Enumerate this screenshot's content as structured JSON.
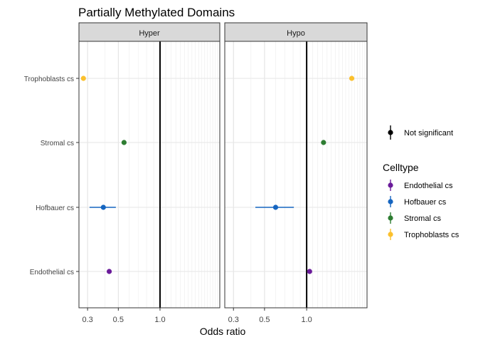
{
  "chart_data": {
    "type": "scatter",
    "title": "Partially Methylated Domains",
    "xlabel": "Odds ratio",
    "ylabel": "",
    "x_scale": "log10",
    "xlim": [
      0.26,
      2.7
    ],
    "x_ticks": [
      0.3,
      0.5,
      1.0
    ],
    "x_tick_labels": [
      "0.3",
      "0.5",
      "1.0"
    ],
    "reference_line_x": 1.0,
    "grid": true,
    "categories": [
      "Trophoblasts cs",
      "Stromal cs",
      "Hofbauer cs",
      "Endothelial cs"
    ],
    "panels": [
      {
        "name": "Hyper",
        "points": [
          {
            "category": "Trophoblasts cs",
            "celltype": "Trophoblasts cs",
            "or": 0.28,
            "lo": 0.28,
            "hi": 0.28
          },
          {
            "category": "Stromal cs",
            "celltype": "Stromal cs",
            "or": 0.55,
            "lo": 0.55,
            "hi": 0.55
          },
          {
            "category": "Hofbauer cs",
            "celltype": "Hofbauer cs",
            "or": 0.39,
            "lo": 0.31,
            "hi": 0.48
          },
          {
            "category": "Endothelial cs",
            "celltype": "Endothelial cs",
            "or": 0.43,
            "lo": 0.43,
            "hi": 0.43
          }
        ]
      },
      {
        "name": "Hypo",
        "points": [
          {
            "category": "Trophoblasts cs",
            "celltype": "Trophoblasts cs",
            "or": 2.1,
            "lo": 2.02,
            "hi": 2.18
          },
          {
            "category": "Stromal cs",
            "celltype": "Stromal cs",
            "or": 1.32,
            "lo": 1.32,
            "hi": 1.32
          },
          {
            "category": "Hofbauer cs",
            "celltype": "Hofbauer cs",
            "or": 0.6,
            "lo": 0.43,
            "hi": 0.81
          },
          {
            "category": "Endothelial cs",
            "celltype": "Endothelial cs",
            "or": 1.05,
            "lo": 1.05,
            "hi": 1.05
          }
        ]
      }
    ],
    "legend": {
      "placement": "right",
      "significance_entry": {
        "label": "Not significant",
        "color": "#000000"
      },
      "celltype_title": "Celltype",
      "celltypes": [
        {
          "name": "Endothelial cs",
          "color": "#6a1b9a"
        },
        {
          "name": "Hofbauer cs",
          "color": "#1565c0"
        },
        {
          "name": "Stromal cs",
          "color": "#2e7d32"
        },
        {
          "name": "Trophoblasts cs",
          "color": "#fbc02d"
        }
      ]
    }
  }
}
